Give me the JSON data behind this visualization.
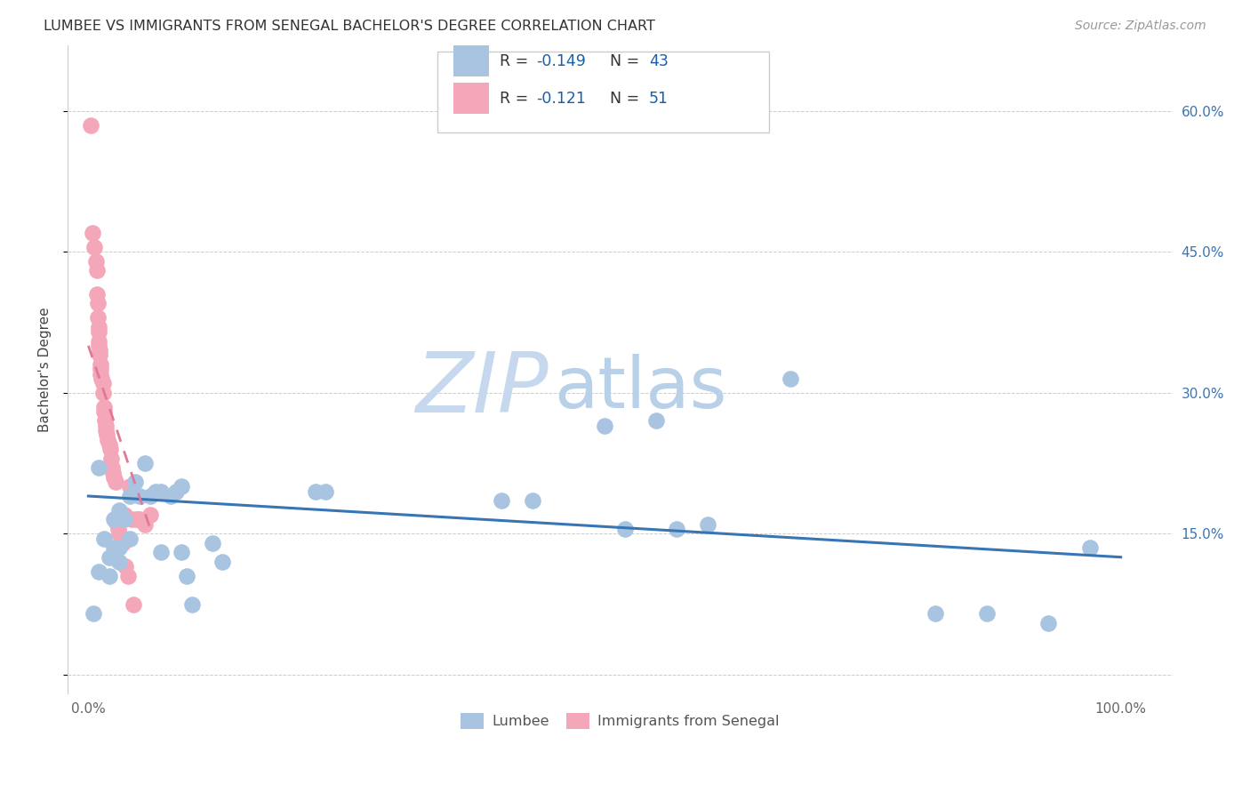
{
  "title": "LUMBEE VS IMMIGRANTS FROM SENEGAL BACHELOR'S DEGREE CORRELATION CHART",
  "source": "Source: ZipAtlas.com",
  "ylabel": "Bachelor's Degree",
  "ytick_labels": [
    "",
    "15.0%",
    "30.0%",
    "45.0%",
    "60.0%"
  ],
  "ytick_values": [
    0.0,
    0.15,
    0.3,
    0.45,
    0.6
  ],
  "xtick_values": [
    0.0,
    0.2,
    0.4,
    0.6,
    0.8,
    1.0
  ],
  "xtick_labels": [
    "0.0%",
    "",
    "",
    "",
    "",
    "100.0%"
  ],
  "xlim": [
    -0.02,
    1.05
  ],
  "ylim": [
    -0.02,
    0.67
  ],
  "lumbee_r": -0.149,
  "lumbee_n": 43,
  "senegal_r": -0.121,
  "senegal_n": 51,
  "lumbee_color": "#a8c4e0",
  "senegal_color": "#f4a7b9",
  "lumbee_line_color": "#3875b5",
  "senegal_line_color": "#e07898",
  "senegal_line_dash": [
    5,
    4
  ],
  "lumbee_x": [
    0.005,
    0.01,
    0.01,
    0.015,
    0.02,
    0.02,
    0.025,
    0.025,
    0.03,
    0.03,
    0.03,
    0.035,
    0.04,
    0.04,
    0.045,
    0.05,
    0.055,
    0.06,
    0.065,
    0.07,
    0.07,
    0.08,
    0.085,
    0.09,
    0.09,
    0.095,
    0.1,
    0.12,
    0.13,
    0.22,
    0.23,
    0.4,
    0.43,
    0.5,
    0.52,
    0.55,
    0.57,
    0.6,
    0.68,
    0.82,
    0.87,
    0.93,
    0.97
  ],
  "lumbee_y": [
    0.065,
    0.22,
    0.11,
    0.145,
    0.125,
    0.105,
    0.165,
    0.135,
    0.175,
    0.135,
    0.12,
    0.165,
    0.145,
    0.19,
    0.205,
    0.19,
    0.225,
    0.19,
    0.195,
    0.195,
    0.13,
    0.19,
    0.195,
    0.2,
    0.13,
    0.105,
    0.075,
    0.14,
    0.12,
    0.195,
    0.195,
    0.185,
    0.185,
    0.265,
    0.155,
    0.27,
    0.155,
    0.16,
    0.315,
    0.065,
    0.065,
    0.055,
    0.135
  ],
  "senegal_x": [
    0.002,
    0.004,
    0.006,
    0.007,
    0.008,
    0.008,
    0.009,
    0.009,
    0.01,
    0.01,
    0.01,
    0.01,
    0.011,
    0.011,
    0.012,
    0.012,
    0.012,
    0.013,
    0.014,
    0.014,
    0.015,
    0.015,
    0.016,
    0.017,
    0.017,
    0.018,
    0.019,
    0.02,
    0.021,
    0.022,
    0.023,
    0.024,
    0.025,
    0.026,
    0.027,
    0.028,
    0.029,
    0.03,
    0.032,
    0.033,
    0.035,
    0.036,
    0.038,
    0.04,
    0.042,
    0.044,
    0.046,
    0.048,
    0.05,
    0.055,
    0.06
  ],
  "senegal_y": [
    0.585,
    0.47,
    0.455,
    0.44,
    0.43,
    0.405,
    0.395,
    0.38,
    0.37,
    0.365,
    0.355,
    0.35,
    0.345,
    0.34,
    0.33,
    0.325,
    0.32,
    0.315,
    0.31,
    0.3,
    0.285,
    0.28,
    0.27,
    0.265,
    0.26,
    0.255,
    0.25,
    0.245,
    0.24,
    0.23,
    0.22,
    0.215,
    0.21,
    0.205,
    0.165,
    0.16,
    0.155,
    0.15,
    0.145,
    0.14,
    0.17,
    0.115,
    0.105,
    0.2,
    0.165,
    0.075,
    0.165,
    0.165,
    0.165,
    0.16,
    0.17
  ],
  "lumbee_trendline_x": [
    0.0,
    1.0
  ],
  "lumbee_trendline_y": [
    0.19,
    0.125
  ],
  "senegal_trendline_x": [
    0.0,
    0.06
  ],
  "senegal_trendline_y": [
    0.35,
    0.155
  ],
  "watermark_zip": "ZIP",
  "watermark_atlas": "atlas",
  "watermark_color_zip": "#c5d8ee",
  "watermark_color_atlas": "#c8dbe8",
  "background_color": "#ffffff",
  "grid_color": "#cccccc"
}
